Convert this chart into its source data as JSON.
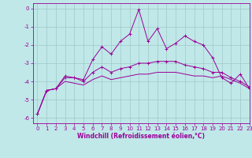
{
  "title": "",
  "xlabel": "Windchill (Refroidissement éolien,°C)",
  "background_color": "#c0e8e8",
  "line_color": "#990099",
  "grid_color": "#a0c8c8",
  "xlim": [
    -0.5,
    23
  ],
  "ylim": [
    -6.3,
    0.3
  ],
  "yticks": [
    0,
    -1,
    -2,
    -3,
    -4,
    -5,
    -6
  ],
  "xticks": [
    0,
    1,
    2,
    3,
    4,
    5,
    6,
    7,
    8,
    9,
    10,
    11,
    12,
    13,
    14,
    15,
    16,
    17,
    18,
    19,
    20,
    21,
    22,
    23
  ],
  "curve1_x": [
    0,
    1,
    2,
    3,
    4,
    5,
    6,
    7,
    8,
    9,
    10,
    11,
    12,
    13,
    14,
    15,
    16,
    17,
    18,
    19,
    20,
    21,
    22,
    23
  ],
  "curve1_y": [
    -5.8,
    -4.5,
    -4.4,
    -3.7,
    -3.8,
    -3.9,
    -2.8,
    -2.1,
    -2.5,
    -1.8,
    -1.4,
    -0.05,
    -1.8,
    -1.1,
    -2.2,
    -1.9,
    -1.5,
    -1.8,
    -2.0,
    -2.7,
    -3.8,
    -4.1,
    -3.6,
    -4.4
  ],
  "curve2_x": [
    0,
    1,
    2,
    3,
    4,
    5,
    6,
    7,
    8,
    9,
    10,
    11,
    12,
    13,
    14,
    15,
    16,
    17,
    18,
    19,
    20,
    21,
    22,
    23
  ],
  "curve2_y": [
    -5.8,
    -4.5,
    -4.4,
    -3.8,
    -3.8,
    -4.0,
    -3.5,
    -3.2,
    -3.5,
    -3.3,
    -3.2,
    -3.0,
    -3.0,
    -2.9,
    -2.9,
    -2.9,
    -3.1,
    -3.2,
    -3.3,
    -3.5,
    -3.5,
    -3.8,
    -4.0,
    -4.3
  ],
  "curve3_x": [
    0,
    1,
    2,
    3,
    4,
    5,
    6,
    7,
    8,
    9,
    10,
    11,
    12,
    13,
    14,
    15,
    16,
    17,
    18,
    19,
    20,
    21,
    22,
    23
  ],
  "curve3_y": [
    -5.8,
    -4.5,
    -4.4,
    -4.0,
    -4.1,
    -4.2,
    -3.9,
    -3.7,
    -3.9,
    -3.8,
    -3.7,
    -3.6,
    -3.6,
    -3.5,
    -3.5,
    -3.5,
    -3.6,
    -3.7,
    -3.7,
    -3.8,
    -3.7,
    -3.9,
    -4.1,
    -4.4
  ],
  "figsize": [
    3.2,
    2.0
  ],
  "dpi": 100,
  "axis_fontsize": 5.5,
  "tick_fontsize": 5
}
